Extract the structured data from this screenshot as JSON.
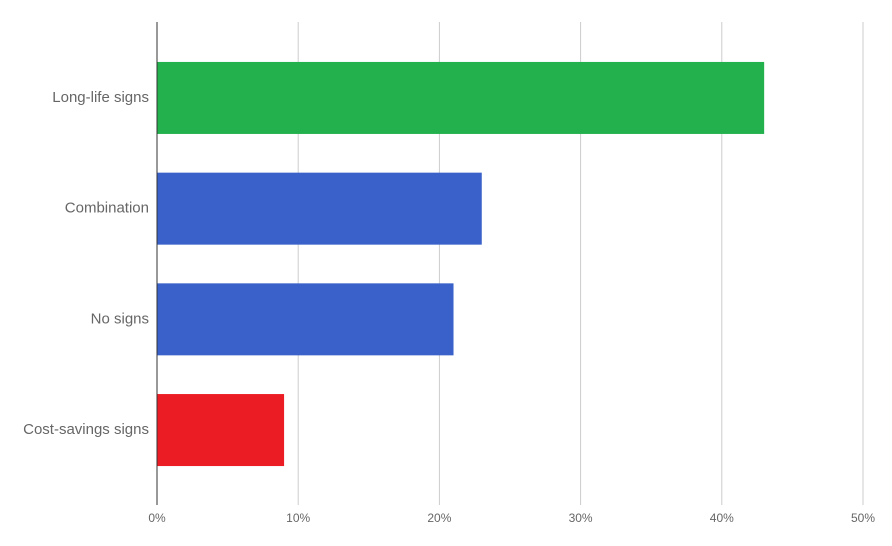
{
  "chart_data": {
    "type": "hbar",
    "categories": [
      "Long-life signs",
      "Combination",
      "No signs",
      "Cost-savings signs"
    ],
    "values": [
      43,
      23,
      21,
      9
    ],
    "colors": [
      "#23b14d",
      "#3a61c9",
      "#3a61c9",
      "#ec1c24"
    ],
    "xlim": [
      0,
      50
    ],
    "xticks": [
      {
        "value": 0,
        "label": "0%"
      },
      {
        "value": 10,
        "label": "10%"
      },
      {
        "value": 20,
        "label": "20%"
      },
      {
        "value": 30,
        "label": "30%"
      },
      {
        "value": 40,
        "label": "40%"
      },
      {
        "value": 50,
        "label": "50%"
      }
    ],
    "grid": true
  }
}
